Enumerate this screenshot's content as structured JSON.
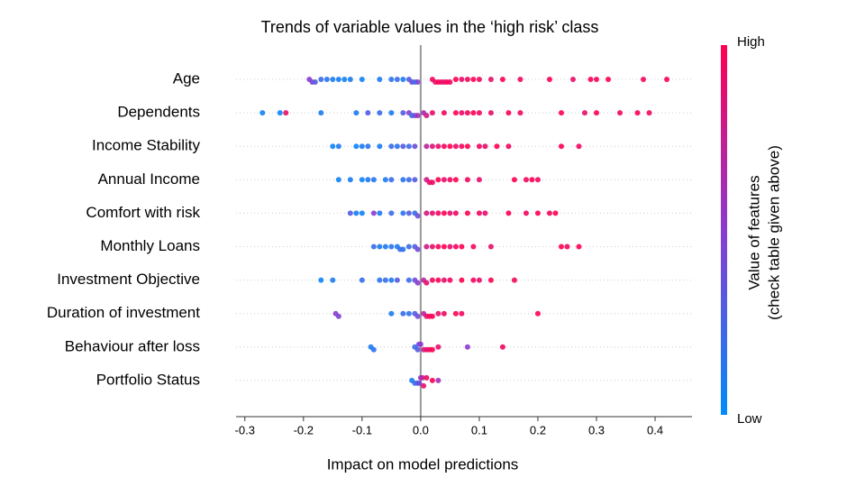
{
  "chart_data": {
    "type": "beeswarm",
    "title": "Trends of variable values in the ‘high risk’ class",
    "x_label": "Impact on model predictions",
    "categories": [
      "Age",
      "Dependents",
      "Income Stability",
      "Annual Income",
      "Comfort with risk",
      "Monthly Loans",
      "Investment Objective",
      "Duration of investment",
      "Behaviour after loss",
      "Portfolio Status"
    ],
    "points": [
      {
        "x": [
          -0.19,
          -0.185,
          -0.18,
          -0.17,
          -0.16,
          -0.15,
          -0.14,
          -0.13,
          -0.12,
          -0.1,
          -0.07,
          -0.05,
          -0.04,
          -0.03,
          -0.02,
          -0.015,
          -0.01,
          -0.005,
          0.02,
          0.025,
          0.03,
          0.035,
          0.04,
          0.045,
          0.05,
          0.06,
          0.07,
          0.08,
          0.09,
          0.1,
          0.12,
          0.14,
          0.17,
          0.22,
          0.26,
          0.29,
          0.3,
          0.32,
          0.38,
          0.42
        ],
        "feature_value": [
          0.5,
          0.45,
          0.3,
          0.2,
          0.15,
          0.1,
          0.1,
          0.05,
          0.1,
          0.05,
          0.1,
          0.15,
          0.2,
          0.1,
          0.3,
          0.4,
          0.2,
          0.45,
          0.95,
          0.9,
          1,
          0.95,
          0.9,
          1,
          0.95,
          1,
          0.9,
          0.95,
          1,
          0.95,
          0.9,
          1,
          0.95,
          1,
          0.9,
          1,
          0.95,
          1,
          0.95,
          1
        ]
      },
      {
        "x": [
          -0.27,
          -0.24,
          -0.23,
          -0.17,
          -0.11,
          -0.09,
          -0.07,
          -0.05,
          -0.03,
          -0.02,
          -0.015,
          -0.01,
          -0.005,
          0.005,
          0.01,
          0.02,
          0.04,
          0.06,
          0.07,
          0.08,
          0.09,
          0.1,
          0.12,
          0.15,
          0.17,
          0.24,
          0.28,
          0.3,
          0.34,
          0.37,
          0.39
        ],
        "feature_value": [
          0.05,
          0.05,
          0.9,
          0.1,
          0.1,
          0.3,
          0.2,
          0.1,
          0.3,
          0.5,
          0.2,
          0.4,
          0.6,
          0.6,
          0.8,
          0.9,
          0.95,
          1,
          0.9,
          0.95,
          1,
          0.95,
          0.9,
          1,
          0.95,
          1,
          0.9,
          1,
          0.95,
          1,
          0.95
        ]
      },
      {
        "x": [
          -0.15,
          -0.14,
          -0.11,
          -0.1,
          -0.09,
          -0.07,
          -0.05,
          -0.04,
          -0.03,
          -0.02,
          -0.01,
          0.01,
          0.02,
          0.03,
          0.04,
          0.05,
          0.06,
          0.07,
          0.08,
          0.1,
          0.11,
          0.13,
          0.15,
          0.24,
          0.27
        ],
        "feature_value": [
          0.05,
          0.1,
          0.05,
          0.1,
          0.15,
          0.1,
          0.2,
          0.15,
          0.3,
          0.2,
          0.4,
          0.7,
          0.85,
          0.9,
          0.95,
          1,
          0.9,
          0.95,
          1,
          0.95,
          0.9,
          1,
          0.95,
          1,
          0.95
        ]
      },
      {
        "x": [
          -0.14,
          -0.12,
          -0.1,
          -0.09,
          -0.08,
          -0.06,
          -0.05,
          -0.03,
          -0.02,
          -0.01,
          0.01,
          0.015,
          0.02,
          0.03,
          0.04,
          0.05,
          0.06,
          0.08,
          0.1,
          0.16,
          0.18,
          0.19,
          0.2
        ],
        "feature_value": [
          0.05,
          0.1,
          0.05,
          0.1,
          0.15,
          0.1,
          0.2,
          0.15,
          0.2,
          0.3,
          0.8,
          0.9,
          0.95,
          1,
          0.9,
          0.95,
          1,
          0.95,
          0.9,
          1,
          0.95,
          1,
          0.95
        ]
      },
      {
        "x": [
          -0.12,
          -0.11,
          -0.1,
          -0.08,
          -0.07,
          -0.05,
          -0.03,
          -0.02,
          -0.01,
          -0.005,
          0.01,
          0.02,
          0.03,
          0.04,
          0.05,
          0.06,
          0.08,
          0.1,
          0.11,
          0.15,
          0.18,
          0.2,
          0.22,
          0.23
        ],
        "feature_value": [
          0.3,
          0.1,
          0.05,
          0.5,
          0.1,
          0.2,
          0.15,
          0.3,
          0.2,
          0.4,
          0.8,
          0.9,
          0.95,
          1,
          0.9,
          0.95,
          1,
          0.95,
          0.9,
          1,
          0.95,
          1,
          0.95,
          1
        ]
      },
      {
        "x": [
          -0.08,
          -0.07,
          -0.06,
          -0.05,
          -0.04,
          -0.035,
          -0.03,
          -0.02,
          -0.01,
          -0.005,
          0.01,
          0.02,
          0.03,
          0.04,
          0.05,
          0.06,
          0.07,
          0.09,
          0.12,
          0.24,
          0.25,
          0.27
        ],
        "feature_value": [
          0.2,
          0.1,
          0.1,
          0.15,
          0.1,
          0.2,
          0.15,
          0.2,
          0.3,
          0.4,
          0.8,
          0.9,
          0.95,
          1,
          0.9,
          0.95,
          1,
          0.95,
          0.9,
          1,
          0.95,
          1
        ]
      },
      {
        "x": [
          -0.17,
          -0.15,
          -0.1,
          -0.07,
          -0.06,
          -0.05,
          -0.04,
          -0.02,
          -0.01,
          -0.005,
          0.005,
          0.01,
          0.02,
          0.03,
          0.04,
          0.05,
          0.07,
          0.09,
          0.1,
          0.12,
          0.16
        ],
        "feature_value": [
          0.05,
          0.1,
          0.2,
          0.15,
          0.2,
          0.1,
          0.3,
          0.2,
          0.4,
          0.5,
          0.7,
          0.9,
          0.95,
          1,
          0.9,
          0.95,
          1,
          0.95,
          0.9,
          1,
          0.95
        ]
      },
      {
        "x": [
          -0.145,
          -0.14,
          -0.05,
          -0.03,
          -0.02,
          -0.01,
          -0.005,
          0.005,
          0.01,
          0.015,
          0.02,
          0.03,
          0.04,
          0.06,
          0.07,
          0.2
        ],
        "feature_value": [
          0.5,
          0.45,
          0.1,
          0.2,
          0.15,
          0.3,
          0.4,
          0.7,
          0.9,
          0.95,
          1,
          0.9,
          0.95,
          1,
          0.95,
          1
        ]
      },
      {
        "x": [
          -0.085,
          -0.08,
          -0.01,
          -0.005,
          -0.003,
          0,
          0.005,
          0.01,
          0.015,
          0.02,
          0.03,
          0.08,
          0.14
        ],
        "feature_value": [
          0.1,
          0.15,
          0.2,
          0.3,
          0.4,
          0.5,
          0.8,
          0.9,
          0.95,
          1,
          0.9,
          0.5,
          0.95
        ]
      },
      {
        "x": [
          -0.015,
          -0.01,
          -0.005,
          -0.002,
          0,
          0.003,
          0.005,
          0.01,
          0.02,
          0.03
        ],
        "feature_value": [
          0.1,
          0.2,
          0.3,
          0.4,
          0.5,
          0.7,
          0.9,
          0.95,
          1,
          0.6
        ]
      }
    ],
    "xlim": [
      -0.315,
      0.463
    ],
    "xticks": [
      -0.3,
      -0.2,
      -0.1,
      {
        "value": 0,
        "label": "0.0"
      },
      0.1,
      0.2,
      0.3,
      0.4
    ],
    "colorbar": {
      "label": [
        "Value of features",
        "(check table given above)"
      ],
      "high_label": "High",
      "low_label": "Low",
      "colors": [
        "#008bfb",
        "#8a3bd0",
        "#ff0052"
      ],
      "range": [
        0,
        1
      ]
    }
  }
}
